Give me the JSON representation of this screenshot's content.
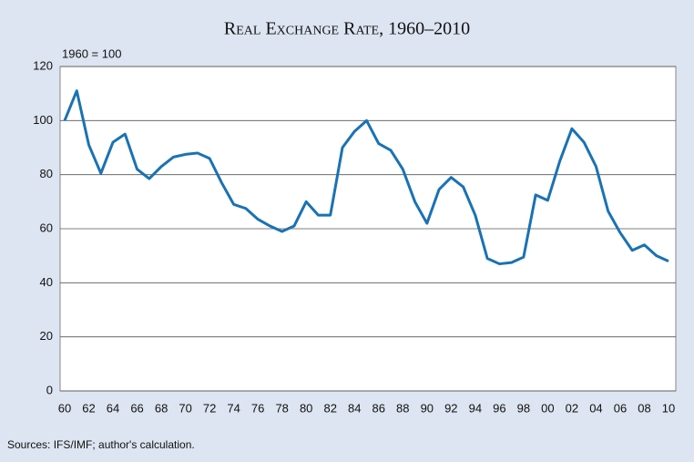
{
  "chart_data": {
    "type": "line",
    "title": "Real Exchange Rate, 1960–2010",
    "subtitle": "1960 = 100",
    "source": "Sources: IFS/IMF; author's calculation.",
    "categories": [
      "60",
      null,
      "62",
      null,
      "64",
      null,
      "66",
      null,
      "68",
      null,
      "70",
      null,
      "72",
      null,
      "74",
      null,
      "76",
      null,
      "78",
      null,
      "80",
      null,
      "82",
      null,
      "84",
      null,
      "86",
      null,
      "88",
      null,
      "90",
      null,
      "92",
      null,
      "94",
      null,
      "96",
      null,
      "98",
      null,
      "00",
      null,
      "02",
      null,
      "04",
      null,
      "06",
      null,
      "08",
      null,
      "10"
    ],
    "series": [
      {
        "color": "#1a72b3",
        "values": [
          100,
          111,
          91,
          80.5,
          92,
          95,
          82,
          78.5,
          83,
          86.5,
          87.5,
          88,
          86,
          77,
          69,
          67.5,
          63.5,
          61,
          59,
          61,
          70,
          65,
          65,
          90,
          96,
          100,
          91.5,
          89,
          82,
          70,
          62,
          74.5,
          79,
          75.5,
          65,
          49,
          47,
          47.5,
          49.5,
          72.5,
          70.5,
          85,
          97,
          92,
          83,
          66.5,
          58.5,
          52,
          54,
          50,
          48
        ]
      }
    ],
    "ylim": [
      0,
      120
    ],
    "yticks": [
      0,
      20,
      40,
      60,
      80,
      100,
      120
    ],
    "grid": true
  }
}
